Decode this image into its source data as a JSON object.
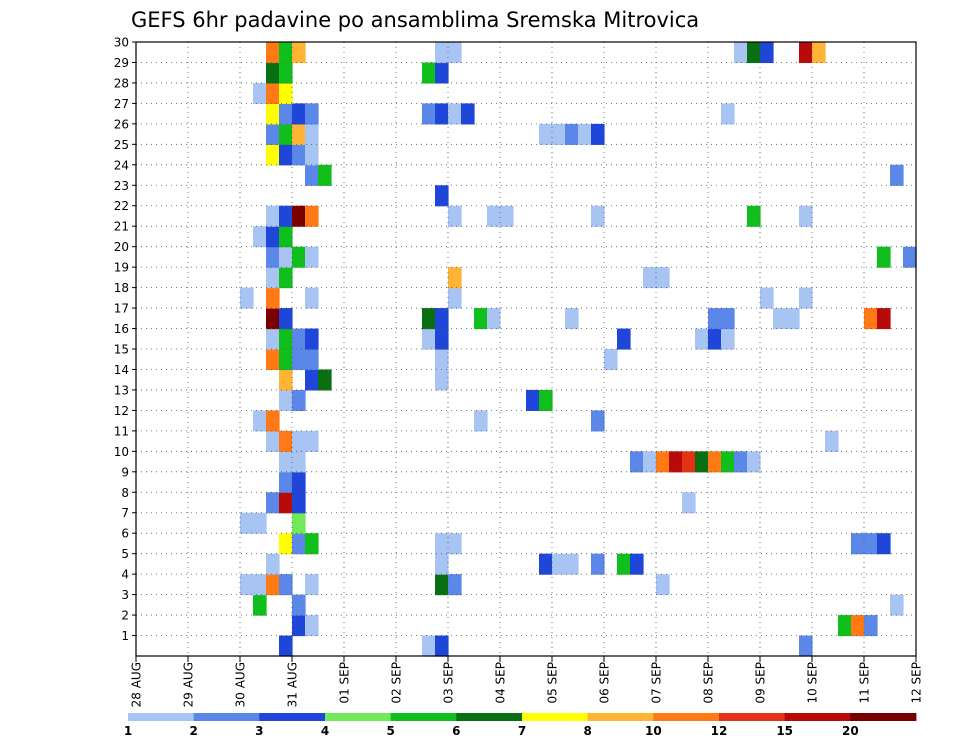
{
  "chart_data": {
    "type": "heatmap",
    "title": "GEFS 6hr padavine po ansamblima Sremska Mitrovica",
    "xlabel": "",
    "ylabel": "",
    "x_ticks": [
      "28 AUG",
      "29 AUG",
      "30 AUG",
      "31 AUG",
      "01 SEP",
      "02 SEP",
      "03 SEP",
      "04 SEP",
      "05 SEP",
      "06 SEP",
      "07 SEP",
      "08 SEP",
      "09 SEP",
      "10 SEP",
      "11 SEP",
      "12 SEP"
    ],
    "x_range_days": [
      0,
      15
    ],
    "time_step_hours": 6,
    "y_ticks": [
      "1",
      "2",
      "3",
      "4",
      "5",
      "6",
      "7",
      "8",
      "9",
      "10",
      "11",
      "12",
      "13",
      "14",
      "15",
      "16",
      "17",
      "18",
      "19",
      "20",
      "21",
      "22",
      "23",
      "24",
      "25",
      "26",
      "27",
      "28",
      "29",
      "30"
    ],
    "y_range": [
      0,
      30
    ],
    "grid": true,
    "colorbar": {
      "placement": "bottom",
      "labels": [
        "1",
        "2",
        "3",
        "4",
        "5",
        "6",
        "7",
        "8",
        "10",
        "12",
        "15",
        "20"
      ],
      "colors": [
        "#a8c4f2",
        "#5b87e8",
        "#1e46d8",
        "#72e85a",
        "#10be1c",
        "#0a6e12",
        "#ffff00",
        "#ffb436",
        "#ff7a14",
        "#e63214",
        "#b90a0a",
        "#7a0000"
      ]
    },
    "cells": [
      {
        "member": 0,
        "step": 11,
        "value": 3
      },
      {
        "member": 0,
        "step": 22,
        "value": 1
      },
      {
        "member": 0,
        "step": 23,
        "value": 3
      },
      {
        "member": 0,
        "step": 51,
        "value": 2
      },
      {
        "member": 1,
        "step": 12,
        "value": 3
      },
      {
        "member": 1,
        "step": 13,
        "value": 1
      },
      {
        "member": 1,
        "step": 54,
        "value": 5
      },
      {
        "member": 1,
        "step": 55,
        "value": 10
      },
      {
        "member": 1,
        "step": 56,
        "value": 2
      },
      {
        "member": 2,
        "step": 9,
        "value": 5
      },
      {
        "member": 2,
        "step": 12,
        "value": 2
      },
      {
        "member": 2,
        "step": 58,
        "value": 1
      },
      {
        "member": 3,
        "step": 8,
        "value": 1
      },
      {
        "member": 3,
        "step": 9,
        "value": 1
      },
      {
        "member": 3,
        "step": 10,
        "value": 10
      },
      {
        "member": 3,
        "step": 11,
        "value": 2
      },
      {
        "member": 3,
        "step": 13,
        "value": 1
      },
      {
        "member": 3,
        "step": 23,
        "value": 6
      },
      {
        "member": 3,
        "step": 24,
        "value": 2
      },
      {
        "member": 3,
        "step": 40,
        "value": 1
      },
      {
        "member": 4,
        "step": 10,
        "value": 1
      },
      {
        "member": 4,
        "step": 23,
        "value": 1
      },
      {
        "member": 4,
        "step": 31,
        "value": 3
      },
      {
        "member": 4,
        "step": 32,
        "value": 1
      },
      {
        "member": 4,
        "step": 33,
        "value": 1
      },
      {
        "member": 4,
        "step": 35,
        "value": 2
      },
      {
        "member": 4,
        "step": 37,
        "value": 5
      },
      {
        "member": 4,
        "step": 38,
        "value": 3
      },
      {
        "member": 5,
        "step": 11,
        "value": 7
      },
      {
        "member": 5,
        "step": 12,
        "value": 2
      },
      {
        "member": 5,
        "step": 13,
        "value": 5
      },
      {
        "member": 5,
        "step": 23,
        "value": 1
      },
      {
        "member": 5,
        "step": 24,
        "value": 1
      },
      {
        "member": 5,
        "step": 55,
        "value": 2
      },
      {
        "member": 5,
        "step": 56,
        "value": 2
      },
      {
        "member": 5,
        "step": 57,
        "value": 3
      },
      {
        "member": 6,
        "step": 8,
        "value": 1
      },
      {
        "member": 6,
        "step": 9,
        "value": 1
      },
      {
        "member": 6,
        "step": 12,
        "value": 4
      },
      {
        "member": 7,
        "step": 10,
        "value": 2
      },
      {
        "member": 7,
        "step": 11,
        "value": 15
      },
      {
        "member": 7,
        "step": 12,
        "value": 3
      },
      {
        "member": 7,
        "step": 42,
        "value": 1
      },
      {
        "member": 8,
        "step": 11,
        "value": 2
      },
      {
        "member": 8,
        "step": 12,
        "value": 3
      },
      {
        "member": 9,
        "step": 11,
        "value": 1
      },
      {
        "member": 9,
        "step": 12,
        "value": 1
      },
      {
        "member": 9,
        "step": 38,
        "value": 2
      },
      {
        "member": 9,
        "step": 39,
        "value": 1
      },
      {
        "member": 9,
        "step": 40,
        "value": 10
      },
      {
        "member": 9,
        "step": 41,
        "value": 15
      },
      {
        "member": 9,
        "step": 42,
        "value": 12
      },
      {
        "member": 9,
        "step": 43,
        "value": 6
      },
      {
        "member": 9,
        "step": 44,
        "value": 10
      },
      {
        "member": 9,
        "step": 45,
        "value": 5
      },
      {
        "member": 9,
        "step": 46,
        "value": 2
      },
      {
        "member": 9,
        "step": 47,
        "value": 1
      },
      {
        "member": 10,
        "step": 10,
        "value": 1
      },
      {
        "member": 10,
        "step": 11,
        "value": 10
      },
      {
        "member": 10,
        "step": 12,
        "value": 1
      },
      {
        "member": 10,
        "step": 13,
        "value": 1
      },
      {
        "member": 10,
        "step": 53,
        "value": 1
      },
      {
        "member": 11,
        "step": 9,
        "value": 1
      },
      {
        "member": 11,
        "step": 10,
        "value": 10
      },
      {
        "member": 11,
        "step": 26,
        "value": 1
      },
      {
        "member": 11,
        "step": 35,
        "value": 2
      },
      {
        "member": 12,
        "step": 11,
        "value": 1
      },
      {
        "member": 12,
        "step": 12,
        "value": 2
      },
      {
        "member": 12,
        "step": 30,
        "value": 3
      },
      {
        "member": 12,
        "step": 31,
        "value": 5
      },
      {
        "member": 13,
        "step": 11,
        "value": 8
      },
      {
        "member": 13,
        "step": 13,
        "value": 3
      },
      {
        "member": 13,
        "step": 14,
        "value": 6
      },
      {
        "member": 13,
        "step": 23,
        "value": 1
      },
      {
        "member": 14,
        "step": 10,
        "value": 10
      },
      {
        "member": 14,
        "step": 11,
        "value": 5
      },
      {
        "member": 14,
        "step": 12,
        "value": 2
      },
      {
        "member": 14,
        "step": 13,
        "value": 2
      },
      {
        "member": 14,
        "step": 23,
        "value": 1
      },
      {
        "member": 14,
        "step": 36,
        "value": 1
      },
      {
        "member": 15,
        "step": 10,
        "value": 1
      },
      {
        "member": 15,
        "step": 11,
        "value": 5
      },
      {
        "member": 15,
        "step": 12,
        "value": 2
      },
      {
        "member": 15,
        "step": 13,
        "value": 3
      },
      {
        "member": 15,
        "step": 22,
        "value": 1
      },
      {
        "member": 15,
        "step": 23,
        "value": 3
      },
      {
        "member": 15,
        "step": 37,
        "value": 3
      },
      {
        "member": 15,
        "step": 43,
        "value": 1
      },
      {
        "member": 15,
        "step": 44,
        "value": 3
      },
      {
        "member": 15,
        "step": 45,
        "value": 1
      },
      {
        "member": 16,
        "step": 10,
        "value": 20
      },
      {
        "member": 16,
        "step": 11,
        "value": 3
      },
      {
        "member": 16,
        "step": 22,
        "value": 6
      },
      {
        "member": 16,
        "step": 23,
        "value": 3
      },
      {
        "member": 16,
        "step": 26,
        "value": 5
      },
      {
        "member": 16,
        "step": 27,
        "value": 1
      },
      {
        "member": 16,
        "step": 33,
        "value": 1
      },
      {
        "member": 16,
        "step": 44,
        "value": 2
      },
      {
        "member": 16,
        "step": 45,
        "value": 2
      },
      {
        "member": 16,
        "step": 49,
        "value": 1
      },
      {
        "member": 16,
        "step": 50,
        "value": 1
      },
      {
        "member": 16,
        "step": 56,
        "value": 10
      },
      {
        "member": 16,
        "step": 57,
        "value": 15
      },
      {
        "member": 17,
        "step": 8,
        "value": 1
      },
      {
        "member": 17,
        "step": 10,
        "value": 10
      },
      {
        "member": 17,
        "step": 13,
        "value": 1
      },
      {
        "member": 17,
        "step": 24,
        "value": 1
      },
      {
        "member": 17,
        "step": 48,
        "value": 1
      },
      {
        "member": 17,
        "step": 51,
        "value": 1
      },
      {
        "member": 18,
        "step": 10,
        "value": 1
      },
      {
        "member": 18,
        "step": 11,
        "value": 5
      },
      {
        "member": 18,
        "step": 24,
        "value": 8
      },
      {
        "member": 18,
        "step": 39,
        "value": 1
      },
      {
        "member": 18,
        "step": 40,
        "value": 1
      },
      {
        "member": 19,
        "step": 10,
        "value": 2
      },
      {
        "member": 19,
        "step": 11,
        "value": 1
      },
      {
        "member": 19,
        "step": 12,
        "value": 5
      },
      {
        "member": 19,
        "step": 13,
        "value": 1
      },
      {
        "member": 19,
        "step": 57,
        "value": 5
      },
      {
        "member": 19,
        "step": 59,
        "value": 2
      },
      {
        "member": 20,
        "step": 9,
        "value": 1
      },
      {
        "member": 20,
        "step": 10,
        "value": 3
      },
      {
        "member": 20,
        "step": 11,
        "value": 5
      },
      {
        "member": 21,
        "step": 10,
        "value": 1
      },
      {
        "member": 21,
        "step": 11,
        "value": 3
      },
      {
        "member": 21,
        "step": 12,
        "value": 20
      },
      {
        "member": 21,
        "step": 13,
        "value": 10
      },
      {
        "member": 21,
        "step": 24,
        "value": 1
      },
      {
        "member": 21,
        "step": 27,
        "value": 1
      },
      {
        "member": 21,
        "step": 28,
        "value": 1
      },
      {
        "member": 21,
        "step": 35,
        "value": 1
      },
      {
        "member": 21,
        "step": 47,
        "value": 5
      },
      {
        "member": 21,
        "step": 51,
        "value": 1
      },
      {
        "member": 22,
        "step": 23,
        "value": 3
      },
      {
        "member": 23,
        "step": 13,
        "value": 2
      },
      {
        "member": 23,
        "step": 14,
        "value": 5
      },
      {
        "member": 23,
        "step": 58,
        "value": 2
      },
      {
        "member": 24,
        "step": 10,
        "value": 7
      },
      {
        "member": 24,
        "step": 11,
        "value": 3
      },
      {
        "member": 24,
        "step": 12,
        "value": 2
      },
      {
        "member": 24,
        "step": 13,
        "value": 1
      },
      {
        "member": 25,
        "step": 10,
        "value": 2
      },
      {
        "member": 25,
        "step": 11,
        "value": 5
      },
      {
        "member": 25,
        "step": 12,
        "value": 8
      },
      {
        "member": 25,
        "step": 13,
        "value": 1
      },
      {
        "member": 25,
        "step": 31,
        "value": 1
      },
      {
        "member": 25,
        "step": 32,
        "value": 1
      },
      {
        "member": 25,
        "step": 33,
        "value": 2
      },
      {
        "member": 25,
        "step": 34,
        "value": 1
      },
      {
        "member": 25,
        "step": 35,
        "value": 3
      },
      {
        "member": 26,
        "step": 10,
        "value": 7
      },
      {
        "member": 26,
        "step": 11,
        "value": 2
      },
      {
        "member": 26,
        "step": 12,
        "value": 3
      },
      {
        "member": 26,
        "step": 13,
        "value": 2
      },
      {
        "member": 26,
        "step": 22,
        "value": 2
      },
      {
        "member": 26,
        "step": 23,
        "value": 3
      },
      {
        "member": 26,
        "step": 24,
        "value": 1
      },
      {
        "member": 26,
        "step": 25,
        "value": 3
      },
      {
        "member": 26,
        "step": 45,
        "value": 1
      },
      {
        "member": 27,
        "step": 9,
        "value": 1
      },
      {
        "member": 27,
        "step": 10,
        "value": 10
      },
      {
        "member": 27,
        "step": 11,
        "value": 7
      },
      {
        "member": 28,
        "step": 10,
        "value": 6
      },
      {
        "member": 28,
        "step": 11,
        "value": 5
      },
      {
        "member": 28,
        "step": 22,
        "value": 5
      },
      {
        "member": 28,
        "step": 23,
        "value": 3
      },
      {
        "member": 29,
        "step": 10,
        "value": 10
      },
      {
        "member": 29,
        "step": 11,
        "value": 5
      },
      {
        "member": 29,
        "step": 12,
        "value": 8
      },
      {
        "member": 29,
        "step": 23,
        "value": 1
      },
      {
        "member": 29,
        "step": 24,
        "value": 1
      },
      {
        "member": 29,
        "step": 46,
        "value": 1
      },
      {
        "member": 29,
        "step": 47,
        "value": 6
      },
      {
        "member": 29,
        "step": 48,
        "value": 3
      },
      {
        "member": 29,
        "step": 51,
        "value": 15
      },
      {
        "member": 29,
        "step": 52,
        "value": 8
      }
    ]
  }
}
